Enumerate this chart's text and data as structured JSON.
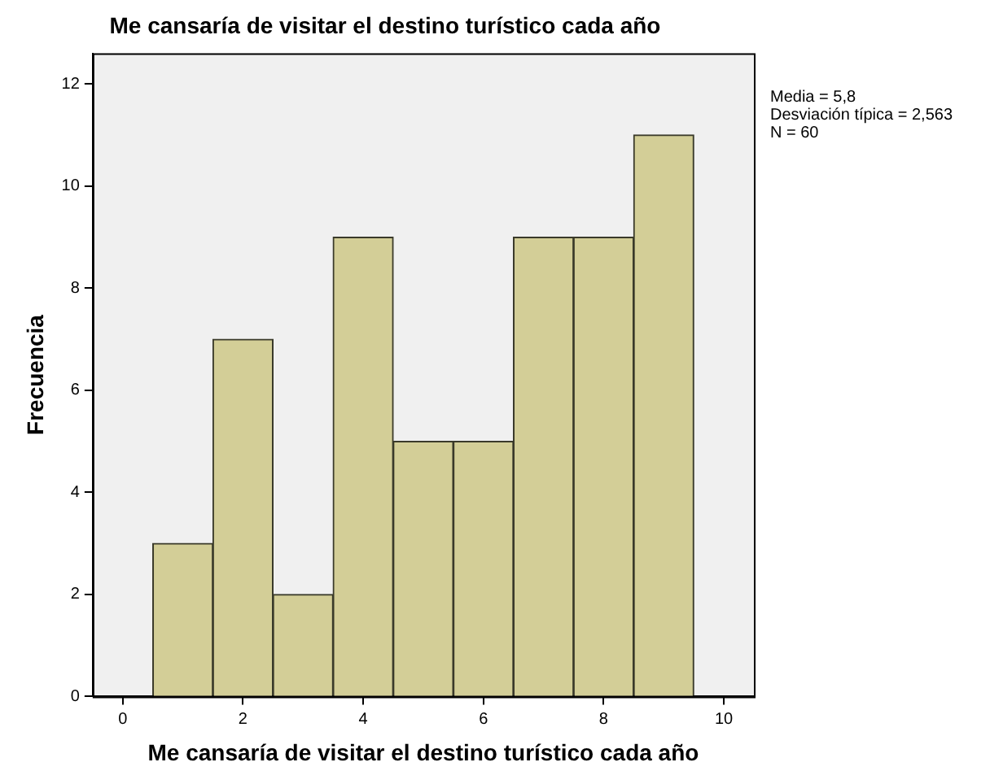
{
  "chart_data": {
    "type": "histogram",
    "title": "Me cansaría de visitar el destino turístico cada año",
    "xlabel": "Me cansaría de visitar el destino turístico cada año",
    "ylabel": "Frecuencia",
    "bins": [
      0.5,
      1.5,
      2.5,
      3.5,
      4.5,
      5.5,
      6.5,
      7.5,
      8.5,
      9.5
    ],
    "values": [
      3,
      7,
      2,
      9,
      5,
      5,
      9,
      9,
      11
    ],
    "color": "#d3ce97",
    "xlim": [
      -0.5,
      10.5
    ],
    "xticks": [
      0,
      2,
      4,
      6,
      8,
      10
    ],
    "ylim": [
      0,
      12.6
    ],
    "yticks": [
      0,
      2,
      4,
      6,
      8,
      10,
      12
    ],
    "grid": false,
    "legend": false,
    "annotations": [
      "Media = 5,8",
      "Desviación típica = 2,563",
      "N = 60"
    ]
  }
}
